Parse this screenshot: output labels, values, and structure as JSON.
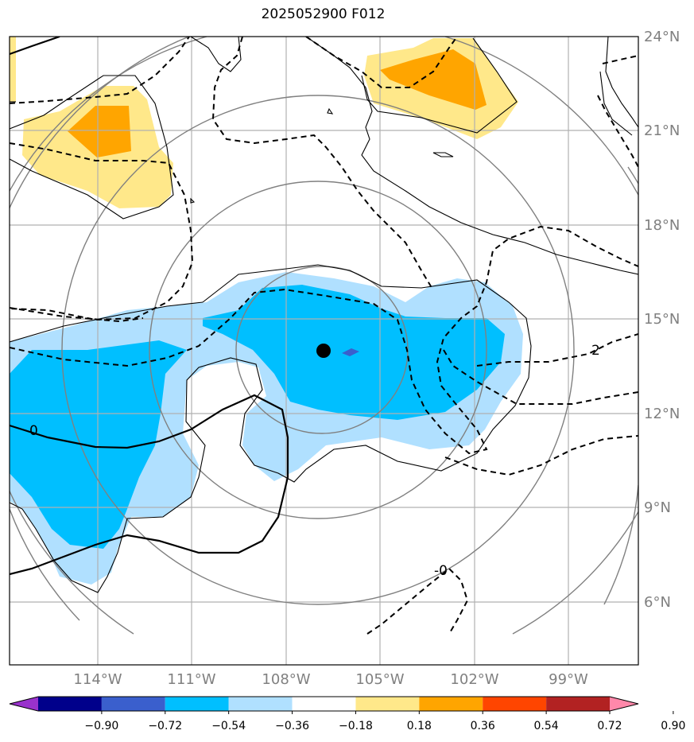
{
  "title": "2025052900 F012",
  "lat_labels": [
    "24°N",
    "21°N",
    "18°N",
    "15°N",
    "12°N",
    "9°N",
    "6°N"
  ],
  "lon_labels": [
    "114°W",
    "111°W",
    "108°W",
    "105°W",
    "102°W",
    "99°W"
  ],
  "contour_labels": [
    "0",
    "2",
    "-0"
  ],
  "colorbar": {
    "ticks": [
      "−0.90",
      "−0.72",
      "−0.54",
      "−0.36",
      "−0.18",
      "0.18",
      "0.36",
      "0.54",
      "0.72",
      "0.90"
    ],
    "colors": [
      "#9932CC",
      "#00008B",
      "#3A5FCD",
      "#00BFFF",
      "#B0E0FF",
      "#FFFFFF",
      "#FFE88A",
      "#FFA500",
      "#FF4500",
      "#B22222",
      "#FF88AA"
    ]
  },
  "colors": {
    "light_blue": "#B0E0FF",
    "deep_sky_blue": "#00BFFF",
    "royal_blue": "#3A5FCD",
    "light_yellow": "#FFE88A",
    "orange": "#FFA500",
    "grid": "#B0B0B0",
    "range_ring": "#808080"
  },
  "storm_center_icon": "filled-circle-marker"
}
